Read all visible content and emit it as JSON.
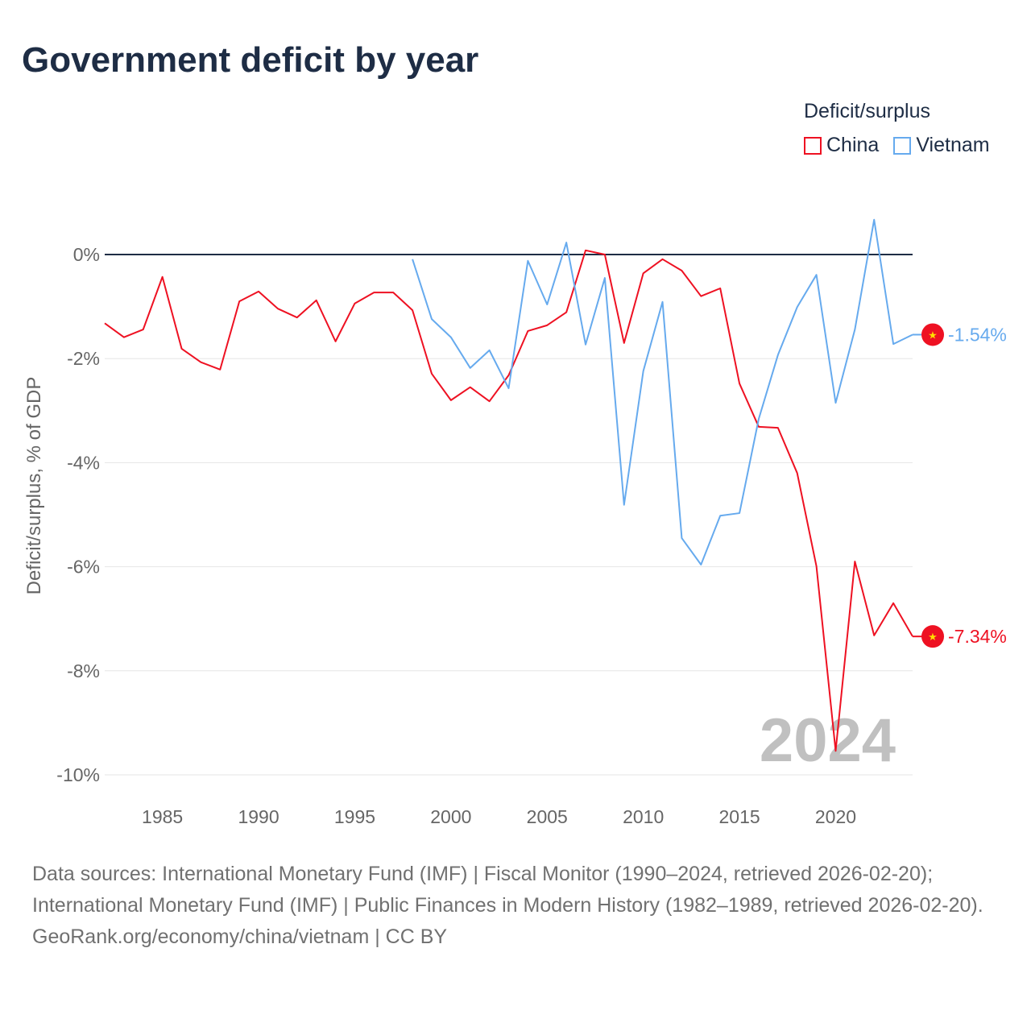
{
  "title": "Government deficit by year",
  "legend": {
    "title": "Deficit/surplus",
    "items": [
      {
        "label": "China",
        "color": "#ee1122"
      },
      {
        "label": "Vietnam",
        "color": "#66aaee"
      }
    ]
  },
  "footer": {
    "sources": "Data sources: International Monetary Fund (IMF) | Fiscal Monitor (1990–2024, retrieved 2026-02-20); International Monetary Fund (IMF) | Public Finances in Modern History (1982–1989, retrieved 2026-02-20).",
    "credit": "GeoRank.org/economy/china/vietnam | CC BY"
  },
  "chart_data": {
    "type": "line",
    "title": "Government deficit by year",
    "ylabel": "Deficit/surplus, % of GDP",
    "xlabel": "",
    "xlim": [
      1982,
      2024
    ],
    "ylim": [
      -10,
      0.9
    ],
    "yticks": [
      0,
      -2,
      -4,
      -6,
      -8,
      -10
    ],
    "ytick_labels": [
      "0%",
      "-2%",
      "-4%",
      "-6%",
      "-8%",
      "-10%"
    ],
    "xticks": [
      1985,
      1990,
      1995,
      2000,
      2005,
      2010,
      2015,
      2020
    ],
    "xtick_labels": [
      "1985",
      "1990",
      "1995",
      "2000",
      "2005",
      "2010",
      "2015",
      "2020"
    ],
    "grid": true,
    "year_watermark": "2024",
    "series": [
      {
        "name": "China",
        "color": "#ee1122",
        "end_label": "-7.34%",
        "start_year": 1982,
        "values": [
          -1.32,
          -1.59,
          -1.44,
          -0.43,
          -1.81,
          -2.07,
          -2.21,
          -0.9,
          -0.71,
          -1.04,
          -1.21,
          -0.88,
          -1.67,
          -0.94,
          -0.73,
          -0.73,
          -1.07,
          -2.29,
          -2.8,
          -2.55,
          -2.82,
          -2.32,
          -1.47,
          -1.36,
          -1.11,
          0.08,
          0.0,
          -1.7,
          -0.36,
          -0.09,
          -0.31,
          -0.8,
          -0.65,
          -2.48,
          -3.31,
          -3.33,
          -4.2,
          -5.99,
          -9.54,
          -5.9,
          -7.32,
          -6.7,
          -7.34
        ]
      },
      {
        "name": "Vietnam",
        "color": "#66aaee",
        "end_label": "-1.54%",
        "start_year": 1998,
        "values": [
          -0.09,
          -1.24,
          -1.59,
          -2.18,
          -1.84,
          -2.57,
          -0.12,
          -0.96,
          0.23,
          -1.73,
          -0.45,
          -4.81,
          -2.24,
          -0.91,
          -5.45,
          -5.96,
          -5.02,
          -4.97,
          -3.16,
          -1.93,
          -1.01,
          -0.39,
          -2.85,
          -1.44,
          0.67,
          -1.72,
          -1.54
        ]
      }
    ]
  }
}
